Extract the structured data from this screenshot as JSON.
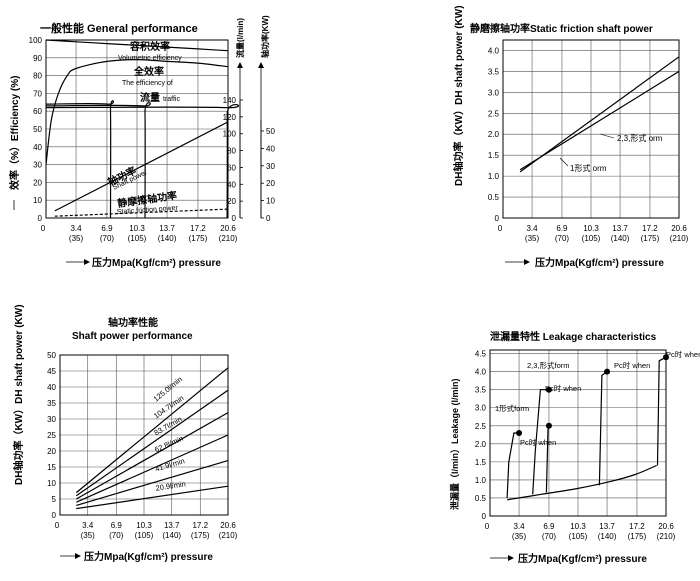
{
  "chart_data": [
    {
      "type": "line",
      "title": "一般性能 General performance",
      "ylabel": "效率（%）Efficiency (%)",
      "xlabel": "压力Mpa(Kgf/cm²) pressure",
      "xticks": [
        "3.4",
        "6.9",
        "10.3",
        "13.7",
        "17.2",
        "20.6"
      ],
      "xticks2": [
        "(35)",
        "(70)",
        "(105)",
        "(140)",
        "(175)",
        "(210)"
      ],
      "yticks": [
        "100",
        "90",
        "80",
        "70",
        "60",
        "50",
        "40",
        "30",
        "20",
        "10",
        "0"
      ],
      "flow_label": "流量(l/min)",
      "flow_ticks": [
        "140",
        "120",
        "100",
        "80",
        "60",
        "40",
        "20",
        "0"
      ],
      "power_label": "轴功率(KW)",
      "power_ticks": [
        "50",
        "40",
        "30",
        "20",
        "10",
        "0"
      ],
      "xlim": [
        0,
        20.6
      ],
      "ylim": [
        0,
        100
      ],
      "grid": true,
      "annotations": [
        {
          "cn": "容积效率",
          "en": "Volumetric efficiency"
        },
        {
          "cn": "全效率",
          "en": "The efficiency of"
        },
        {
          "cn": "流量",
          "en": "traffic"
        },
        {
          "cn": "轴功率",
          "en": "Shaft power"
        },
        {
          "cn": "静摩擦轴功率",
          "en": "Static friction power"
        }
      ],
      "series": [
        {
          "name": "容积效率 Volumetric efficiency",
          "x": [
            0,
            3.4,
            6.9,
            10.3,
            13.7,
            17.2,
            20.6
          ],
          "y": [
            100,
            99,
            98,
            97,
            96,
            95,
            94
          ]
        },
        {
          "name": "全效率 The efficiency of",
          "x": [
            0,
            0.6,
            1.4,
            2.4,
            3.4,
            6.9,
            10.3,
            13.7,
            17.2,
            20.6
          ],
          "y": [
            30,
            55,
            70,
            80,
            84,
            88,
            89,
            88,
            87,
            85
          ]
        },
        {
          "name": "轴功率 Shaft power",
          "x": [
            1,
            20.6
          ],
          "y": [
            4,
            54
          ]
        },
        {
          "name": "静摩擦轴功率 Static friction power",
          "x": [
            1,
            20.6
          ],
          "y": [
            1,
            5
          ]
        }
      ],
      "flow_series": [
        {
          "x": [
            0,
            7.0,
            7.3,
            7.3
          ],
          "y": [
            64,
            64,
            60,
            0
          ]
        },
        {
          "x": [
            0,
            10.9,
            11.2,
            11.2
          ],
          "y": [
            63,
            63,
            59,
            0
          ]
        },
        {
          "x": [
            0,
            20.2,
            20.5,
            20.5
          ],
          "y": [
            62,
            62,
            58,
            0
          ]
        }
      ]
    },
    {
      "type": "line",
      "title": "静磨擦轴功率Static friction shaft power",
      "ylabel": "DH轴功率（KW）DH shaft power (KW)",
      "xlabel": "压力Mpa(Kgf/cm²) pressure",
      "xticks": [
        "3.4",
        "6.9",
        "10.3",
        "13.7",
        "17.2",
        "20.6"
      ],
      "xticks2": [
        "(35)",
        "(70)",
        "(105)",
        "(140)",
        "(175)",
        "(210)"
      ],
      "yticks": [
        "4.0",
        "3.5",
        "3.0",
        "2.5",
        "2.0",
        "1.5",
        "1.0",
        "0.5",
        "0"
      ],
      "xlim": [
        0,
        20.6
      ],
      "ylim": [
        0,
        4.25
      ],
      "grid": true,
      "annotations": [
        {
          "text": "2,3,形式 orm"
        },
        {
          "text": "1形式 orm"
        }
      ],
      "series": [
        {
          "name": "2,3,形式 orm",
          "x": [
            2,
            20.6
          ],
          "y": [
            1.1,
            3.85
          ]
        },
        {
          "name": "1形式 orm",
          "x": [
            2,
            20.6
          ],
          "y": [
            1.15,
            3.5
          ]
        }
      ]
    },
    {
      "type": "line",
      "title": "轴功率性能",
      "subtitle": "Shaft power performance",
      "ylabel": "DH轴功率（KW）DH shaft power (KW)",
      "xlabel": "压力Mpa(Kgf/cm²) pressure",
      "xticks": [
        "3.4",
        "6.9",
        "10.3",
        "13.7",
        "17.2",
        "20.6"
      ],
      "xticks2": [
        "(35)",
        "(70)",
        "(105)",
        "(140)",
        "(175)",
        "(210)"
      ],
      "yticks": [
        "50",
        "45",
        "40",
        "35",
        "30",
        "25",
        "20",
        "15",
        "10",
        "5",
        "0"
      ],
      "xlim": [
        0,
        20.6
      ],
      "ylim": [
        0,
        50
      ],
      "grid": true,
      "series": [
        {
          "name": "125.0l/min",
          "x": [
            2,
            20.6
          ],
          "y": [
            7,
            46
          ]
        },
        {
          "name": "104.7l/min",
          "x": [
            2,
            20.6
          ],
          "y": [
            6,
            39
          ]
        },
        {
          "name": "83.7l/min",
          "x": [
            2,
            20.6
          ],
          "y": [
            5,
            32
          ]
        },
        {
          "name": "62.8l/min",
          "x": [
            2,
            20.6
          ],
          "y": [
            4,
            25
          ]
        },
        {
          "name": "41.9l/min",
          "x": [
            2,
            20.6
          ],
          "y": [
            3,
            17
          ]
        },
        {
          "name": "20.9l/min",
          "x": [
            2,
            20.6
          ],
          "y": [
            2,
            9
          ]
        }
      ]
    },
    {
      "type": "line",
      "title": "泄漏量特性 Leakage characteristics",
      "ylabel": "泄漏量（l/min）Leakage (l/min)",
      "xlabel": "压力Mpa(Kgf/cm²) pressure",
      "xticks": [
        "3.4",
        "6.9",
        "10.3",
        "13.7",
        "17.2",
        "20.6"
      ],
      "xticks2": [
        "(35)",
        "(70)",
        "(105)",
        "(140)",
        "(175)",
        "(210)"
      ],
      "yticks": [
        "4.5",
        "4.0",
        "3.5",
        "3.0",
        "2.5",
        "2.0",
        "1.5",
        "1.0",
        "0.5",
        "0"
      ],
      "xlim": [
        0,
        20.6
      ],
      "ylim": [
        0,
        4.6
      ],
      "grid": true,
      "annotations": [
        {
          "text": "2,3,形式form"
        },
        {
          "text": "1形式form"
        },
        {
          "text": "Pc时 when"
        },
        {
          "text": "Pc时 when"
        },
        {
          "text": "Pc时 when"
        },
        {
          "text": "Pc时 when"
        }
      ],
      "series": [
        {
          "name": "base",
          "x": [
            2,
            6,
            10,
            14,
            17,
            19.5
          ],
          "y": [
            0.45,
            0.6,
            0.75,
            0.95,
            1.15,
            1.4
          ]
        },
        {
          "name": "1形式form",
          "x": [
            2,
            2.2,
            2.8,
            3.4
          ],
          "y": [
            0.5,
            1.5,
            2.3,
            2.3
          ]
        },
        {
          "name": "2,3,形式form",
          "x": [
            5,
            5.3,
            5.9,
            6.9
          ],
          "y": [
            0.6,
            1.8,
            3.5,
            3.5
          ]
        },
        {
          "name": "Pc 6.9",
          "x": [
            6.6,
            6.8,
            6.9
          ],
          "y": [
            0.65,
            2.5,
            2.5
          ]
        },
        {
          "name": "Pc 13.7",
          "x": [
            12.8,
            13.1,
            13.7
          ],
          "y": [
            0.85,
            3.9,
            4.0
          ]
        },
        {
          "name": "Pc 20.6",
          "x": [
            19.6,
            19.8,
            20.6
          ],
          "y": [
            1.4,
            4.3,
            4.4
          ]
        }
      ],
      "points": [
        {
          "x": 3.4,
          "y": 2.3
        },
        {
          "x": 6.9,
          "y": 3.5
        },
        {
          "x": 6.9,
          "y": 2.5
        },
        {
          "x": 13.7,
          "y": 4.0
        },
        {
          "x": 20.6,
          "y": 4.4
        }
      ]
    }
  ]
}
